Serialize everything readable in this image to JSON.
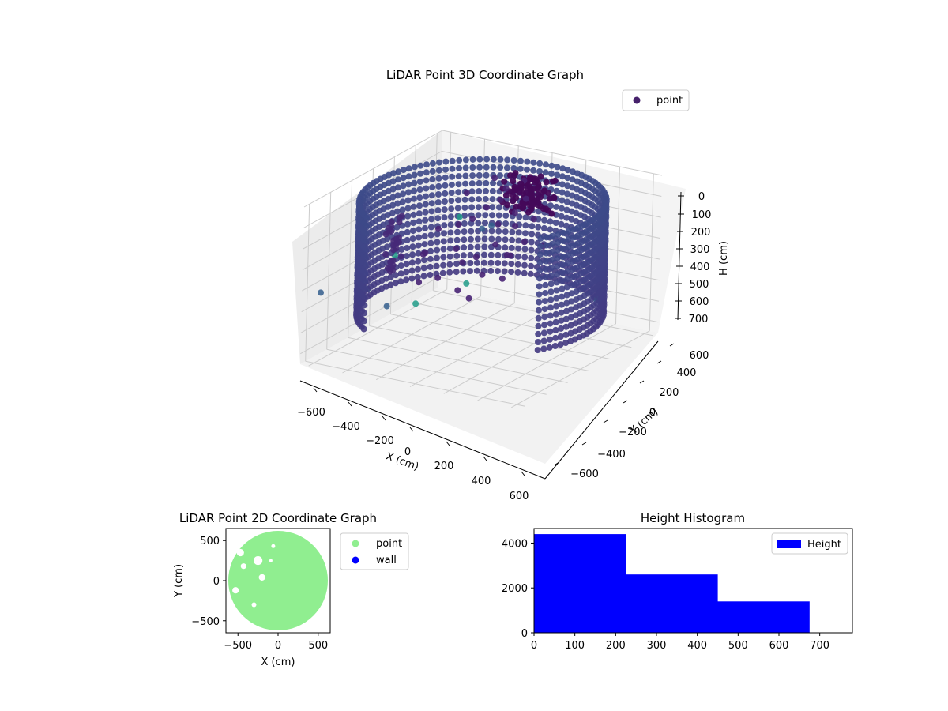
{
  "chart_data": [
    {
      "type": "scatter3d",
      "title": "LiDAR Point 3D Coordinate Graph",
      "xlabel": "X (cm)",
      "ylabel": "Y (cm)",
      "zlabel": "H (cm)",
      "x_ticks": [
        "−600",
        "−400",
        "−200",
        "0",
        "200",
        "400",
        "600"
      ],
      "y_ticks": [
        "−600",
        "−400",
        "−200",
        "0",
        "200",
        "400",
        "600"
      ],
      "z_ticks": [
        "0",
        "100",
        "200",
        "300",
        "400",
        "500",
        "600",
        "700"
      ],
      "xlim": [
        -650,
        650
      ],
      "ylim": [
        -650,
        650
      ],
      "zlim": [
        0,
        750
      ],
      "z_inverted": true,
      "grid": true,
      "colormap": "viridis",
      "legend": {
        "placement": "upper-right",
        "entries": [
          {
            "name": "point",
            "color": "#46216b"
          }
        ]
      },
      "structures": {
        "ring_wall": {
          "radius": 620,
          "arc_deg": [
            -30,
            235
          ],
          "h_range": [
            50,
            600
          ]
        },
        "clutter_points": [
          [
            -150,
            350,
            60
          ],
          [
            -50,
            300,
            80
          ],
          [
            30,
            340,
            40
          ],
          [
            -250,
            250,
            120
          ],
          [
            100,
            250,
            90
          ],
          [
            -100,
            200,
            150
          ],
          [
            0,
            150,
            200
          ],
          [
            120,
            120,
            180
          ],
          [
            -200,
            100,
            220
          ],
          [
            50,
            50,
            260
          ],
          [
            -150,
            0,
            300
          ],
          [
            150,
            0,
            280
          ],
          [
            -50,
            -100,
            320
          ],
          [
            100,
            -150,
            340
          ],
          [
            -250,
            -150,
            300
          ],
          [
            200,
            -50,
            260
          ],
          [
            -100,
            -250,
            360
          ],
          [
            50,
            -300,
            380
          ],
          [
            250,
            -200,
            320
          ],
          [
            -300,
            -50,
            330
          ],
          [
            300,
            100,
            240
          ],
          [
            -20,
            200,
            100
          ],
          [
            -120,
            100,
            180
          ],
          [
            80,
            180,
            140
          ],
          [
            180,
            200,
            160
          ],
          [
            -350,
            150,
            280
          ],
          [
            0,
            -50,
            300
          ],
          [
            220,
            50,
            220
          ],
          [
            -180,
            -300,
            380
          ],
          [
            130,
            -320,
            400
          ]
        ],
        "outlier_points": [
          [
            -640,
            -40,
            560
          ],
          [
            -590,
            130,
            440
          ],
          [
            -320,
            300,
            260
          ],
          [
            -480,
            640,
            700
          ],
          [
            -640,
            420,
            760
          ],
          [
            560,
            200,
            480
          ],
          [
            -620,
            -520,
            440
          ],
          [
            -260,
            420,
            340
          ],
          [
            -680,
            210,
            720
          ],
          [
            -180,
            380,
            300
          ]
        ]
      }
    },
    {
      "type": "scatter",
      "title": "LiDAR Point 2D Coordinate Graph",
      "xlabel": "X (cm)",
      "ylabel": "Y (cm)",
      "x_ticks": [
        "−500",
        "0",
        "500"
      ],
      "y_ticks": [
        "500",
        "0",
        "−500"
      ],
      "xlim": [
        -650,
        650
      ],
      "ylim": [
        -650,
        650
      ],
      "legend": {
        "placement": "outside-right",
        "entries": [
          {
            "name": "point",
            "color": "#90ee90"
          },
          {
            "name": "wall",
            "color": "#0000ff"
          }
        ]
      },
      "series": [
        {
          "name": "point",
          "color": "#90ee90",
          "shape": "disc",
          "radius": 620
        }
      ]
    },
    {
      "type": "histogram",
      "title": "Height Histogram",
      "x_ticks": [
        "0",
        "100",
        "200",
        "300",
        "400",
        "500",
        "600",
        "700"
      ],
      "y_ticks": [
        "0",
        "2000",
        "4000"
      ],
      "xlim": [
        0,
        780
      ],
      "ylim": [
        0,
        4650
      ],
      "legend": {
        "placement": "upper-right",
        "entries": [
          {
            "name": "Height",
            "color": "#0000ff"
          }
        ]
      },
      "bins": [
        [
          0,
          225,
          4400
        ],
        [
          225,
          450,
          2600
        ],
        [
          450,
          675,
          1400
        ]
      ],
      "color": "#0000ff"
    }
  ]
}
